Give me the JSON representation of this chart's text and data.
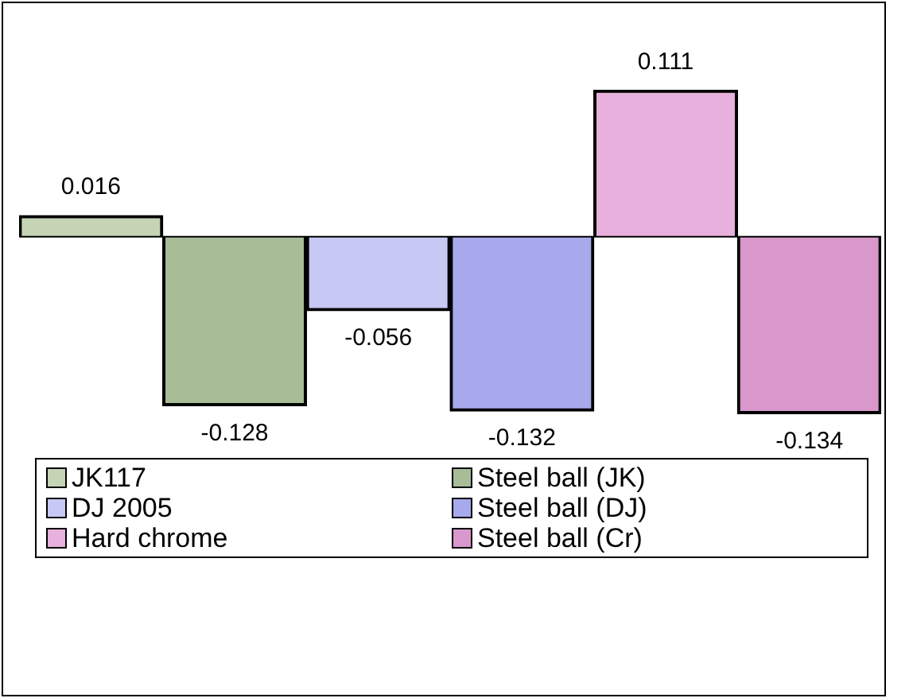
{
  "chart_data": {
    "type": "bar",
    "categories": [
      null
    ],
    "series": [
      {
        "name": "JK117",
        "color": "#c4d4b4",
        "values": [
          0.016
        ]
      },
      {
        "name": "Steel ball (JK)",
        "color": "#a8bc98",
        "values": [
          -0.128
        ]
      },
      {
        "name": "DJ 2005",
        "color": "#c8c8f4",
        "values": [
          -0.056
        ]
      },
      {
        "name": "Steel ball (DJ)",
        "color": "#a8a8ec",
        "values": [
          -0.132
        ]
      },
      {
        "name": "Hard chrome",
        "color": "#e8b0dc",
        "values": [
          0.111
        ]
      },
      {
        "name": "Steel ball (Cr)",
        "color": "#d898cc",
        "values": [
          -0.134
        ]
      }
    ],
    "data_labels": true,
    "legend": "bottom"
  }
}
